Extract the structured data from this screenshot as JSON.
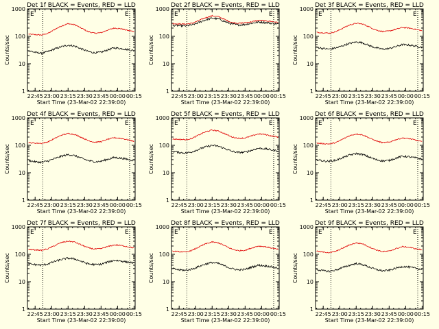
{
  "figure": {
    "background": "#ffffe6"
  },
  "colors": {
    "events": "#000000",
    "lld": "#e00000",
    "axes": "#000000"
  },
  "chart_data": [
    {
      "type": "line",
      "title": "Det 1f BLACK = Events, RED = LLD",
      "xlabel": "Start Time (23-Mar-02 22:39:00)",
      "ylabel": "Counts/sec",
      "yscale": "log",
      "ylim": [
        1,
        1000
      ],
      "y_ticks": [
        "1",
        "10",
        "100",
        "1000"
      ],
      "xlim_minutes": [
        -1,
        97
      ],
      "x_ticks": [
        "22:45",
        "23:00",
        "23:15",
        "23:30",
        "23:45",
        "00:00",
        "00:15"
      ],
      "marker_E": "E",
      "vlines": [
        "22:52",
        "00:11"
      ],
      "x": [
        "22:39",
        "22:45",
        "22:51",
        "22:57",
        "23:03",
        "23:09",
        "23:15",
        "23:21",
        "23:27",
        "23:33",
        "23:39",
        "23:45",
        "23:51",
        "23:57",
        "00:03",
        "00:09",
        "00:15"
      ],
      "series": [
        {
          "key": "lld",
          "values": [
            120,
            115,
            112,
            130,
            180,
            240,
            290,
            265,
            200,
            150,
            130,
            135,
            170,
            200,
            190,
            165,
            150
          ]
        },
        {
          "key": "events",
          "values": [
            30,
            26,
            24,
            28,
            35,
            42,
            48,
            44,
            35,
            28,
            25,
            26,
            32,
            38,
            36,
            33,
            30
          ]
        }
      ]
    },
    {
      "type": "line",
      "title": "Det 2f BLACK = Events, RED = LLD",
      "xlabel": "Start Time (23-Mar-02 22:39:00)",
      "ylabel": "Counts/sec",
      "yscale": "log",
      "ylim": [
        1,
        1000
      ],
      "y_ticks": [
        "1",
        "10",
        "100",
        "1000"
      ],
      "xlim_minutes": [
        -1,
        97
      ],
      "x_ticks": [
        "22:45",
        "23:00",
        "23:15",
        "23:30",
        "23:45",
        "00:00",
        "00:15"
      ],
      "marker_E": "E",
      "vlines": [
        "22:52",
        "00:11"
      ],
      "x": [
        "22:39",
        "22:45",
        "22:51",
        "22:57",
        "23:03",
        "23:09",
        "23:15",
        "23:21",
        "23:27",
        "23:33",
        "23:39",
        "23:45",
        "23:51",
        "23:57",
        "00:03",
        "00:09",
        "00:15"
      ],
      "series": [
        {
          "key": "lld",
          "values": [
            290,
            285,
            280,
            300,
            380,
            480,
            560,
            520,
            400,
            320,
            300,
            310,
            340,
            380,
            370,
            350,
            320
          ]
        },
        {
          "key": "events",
          "values": [
            250,
            245,
            240,
            260,
            320,
            400,
            460,
            430,
            340,
            280,
            260,
            270,
            300,
            330,
            320,
            300,
            280
          ]
        }
      ]
    },
    {
      "type": "line",
      "title": "Det 3f BLACK = Events, RED = LLD",
      "xlabel": "Start Time (23-Mar-02 22:39:00)",
      "ylabel": "Counts/sec",
      "yscale": "log",
      "ylim": [
        1,
        1000
      ],
      "y_ticks": [
        "1",
        "10",
        "100",
        "1000"
      ],
      "xlim_minutes": [
        -1,
        97
      ],
      "x_ticks": [
        "22:45",
        "23:00",
        "23:15",
        "23:30",
        "23:45",
        "00:00",
        "00:15"
      ],
      "marker_E": "E",
      "vlines": [
        "22:52",
        "00:11"
      ],
      "x": [
        "22:39",
        "22:45",
        "22:51",
        "22:57",
        "23:03",
        "23:09",
        "23:15",
        "23:21",
        "23:27",
        "23:33",
        "23:39",
        "23:45",
        "23:51",
        "23:57",
        "00:03",
        "00:09",
        "00:15"
      ],
      "series": [
        {
          "key": "lld",
          "values": [
            140,
            135,
            130,
            150,
            200,
            260,
            300,
            280,
            220,
            170,
            150,
            155,
            180,
            210,
            200,
            180,
            160
          ]
        },
        {
          "key": "events",
          "values": [
            40,
            36,
            34,
            38,
            46,
            55,
            62,
            58,
            46,
            38,
            34,
            36,
            42,
            50,
            48,
            44,
            40
          ]
        }
      ]
    },
    {
      "type": "line",
      "title": "Det 4f BLACK = Events, RED = LLD",
      "xlabel": "Start Time (23-Mar-02 22:39:00)",
      "ylabel": "Counts/sec",
      "yscale": "log",
      "ylim": [
        1,
        1000
      ],
      "y_ticks": [
        "1",
        "10",
        "100",
        "1000"
      ],
      "xlim_minutes": [
        -1,
        97
      ],
      "x_ticks": [
        "22:45",
        "23:00",
        "23:15",
        "23:30",
        "23:45",
        "00:00",
        "00:15"
      ],
      "marker_E": "E",
      "vlines": [
        "22:52",
        "00:11"
      ],
      "x": [
        "22:39",
        "22:45",
        "22:51",
        "22:57",
        "23:03",
        "23:09",
        "23:15",
        "23:21",
        "23:27",
        "23:33",
        "23:39",
        "23:45",
        "23:51",
        "23:57",
        "00:03",
        "00:09",
        "00:15"
      ],
      "series": [
        {
          "key": "lld",
          "values": [
            125,
            120,
            118,
            135,
            180,
            235,
            270,
            250,
            195,
            150,
            130,
            135,
            165,
            190,
            180,
            160,
            140
          ]
        },
        {
          "key": "events",
          "values": [
            28,
            25,
            24,
            27,
            33,
            40,
            46,
            42,
            34,
            28,
            25,
            26,
            31,
            36,
            34,
            31,
            28
          ]
        }
      ]
    },
    {
      "type": "line",
      "title": "Det 5f BLACK = Events, RED = LLD",
      "xlabel": "Start Time (23-Mar-02 22:39:00)",
      "ylabel": "Counts/sec",
      "yscale": "log",
      "ylim": [
        1,
        1000
      ],
      "y_ticks": [
        "1",
        "10",
        "100",
        "1000"
      ],
      "xlim_minutes": [
        -1,
        97
      ],
      "x_ticks": [
        "22:45",
        "23:00",
        "23:15",
        "23:30",
        "23:45",
        "00:00",
        "00:15"
      ],
      "marker_E": "E",
      "vlines": [
        "22:52",
        "00:11"
      ],
      "x": [
        "22:39",
        "22:45",
        "22:51",
        "22:57",
        "23:03",
        "23:09",
        "23:15",
        "23:21",
        "23:27",
        "23:33",
        "23:39",
        "23:45",
        "23:51",
        "23:57",
        "00:03",
        "00:09",
        "00:15"
      ],
      "series": [
        {
          "key": "lld",
          "values": [
            170,
            165,
            160,
            180,
            240,
            310,
            360,
            330,
            260,
            200,
            180,
            185,
            220,
            260,
            250,
            220,
            200
          ]
        },
        {
          "key": "events",
          "values": [
            60,
            55,
            52,
            58,
            72,
            88,
            100,
            92,
            75,
            60,
            55,
            56,
            66,
            78,
            75,
            68,
            62
          ]
        }
      ]
    },
    {
      "type": "line",
      "title": "Det 6f BLACK = Events, RED = LLD",
      "xlabel": "Start Time (23-Mar-02 22:39:00)",
      "ylabel": "Counts/sec",
      "yscale": "log",
      "ylim": [
        1,
        1000
      ],
      "y_ticks": [
        "1",
        "10",
        "100",
        "1000"
      ],
      "xlim_minutes": [
        -1,
        97
      ],
      "x_ticks": [
        "22:45",
        "23:00",
        "23:15",
        "23:30",
        "23:45",
        "00:00",
        "00:15"
      ],
      "marker_E": "E",
      "vlines": [
        "22:52",
        "00:11"
      ],
      "x": [
        "22:39",
        "22:45",
        "22:51",
        "22:57",
        "23:03",
        "23:09",
        "23:15",
        "23:21",
        "23:27",
        "23:33",
        "23:39",
        "23:45",
        "23:51",
        "23:57",
        "00:03",
        "00:09",
        "00:15"
      ],
      "series": [
        {
          "key": "lld",
          "values": [
            120,
            115,
            112,
            128,
            170,
            225,
            260,
            240,
            185,
            145,
            125,
            130,
            160,
            185,
            175,
            155,
            135
          ]
        },
        {
          "key": "events",
          "values": [
            30,
            27,
            26,
            29,
            36,
            44,
            50,
            46,
            37,
            30,
            27,
            28,
            34,
            40,
            38,
            35,
            31
          ]
        }
      ]
    },
    {
      "type": "line",
      "title": "Det 7f BLACK = Events, RED = LLD",
      "xlabel": "Start Time (23-Mar-02 22:39:00)",
      "ylabel": "Counts/sec",
      "yscale": "log",
      "ylim": [
        1,
        1000
      ],
      "y_ticks": [
        "1",
        "10",
        "100",
        "1000"
      ],
      "xlim_minutes": [
        -1,
        97
      ],
      "x_ticks": [
        "22:45",
        "23:00",
        "23:15",
        "23:30",
        "23:45",
        "00:00",
        "00:15"
      ],
      "marker_E": "E",
      "vlines": [
        "22:52",
        "00:11"
      ],
      "x": [
        "22:39",
        "22:45",
        "22:51",
        "22:57",
        "23:03",
        "23:09",
        "23:15",
        "23:21",
        "23:27",
        "23:33",
        "23:39",
        "23:45",
        "23:51",
        "23:57",
        "00:03",
        "00:09",
        "00:15"
      ],
      "series": [
        {
          "key": "lld",
          "values": [
            150,
            145,
            140,
            160,
            210,
            270,
            300,
            280,
            220,
            175,
            155,
            160,
            190,
            220,
            210,
            190,
            170
          ]
        },
        {
          "key": "events",
          "values": [
            45,
            42,
            40,
            45,
            55,
            65,
            72,
            68,
            55,
            45,
            42,
            43,
            52,
            60,
            57,
            52,
            48
          ]
        }
      ]
    },
    {
      "type": "line",
      "title": "Det 8f BLACK = Events, RED = LLD",
      "xlabel": "Start Time (23-Mar-02 22:39:00)",
      "ylabel": "Counts/sec",
      "yscale": "log",
      "ylim": [
        1,
        1000
      ],
      "y_ticks": [
        "1",
        "10",
        "100",
        "1000"
      ],
      "xlim_minutes": [
        -1,
        97
      ],
      "x_ticks": [
        "22:45",
        "23:00",
        "23:15",
        "23:30",
        "23:45",
        "00:00",
        "00:15"
      ],
      "marker_E": "E",
      "vlines": [
        "22:52",
        "00:11"
      ],
      "x": [
        "22:39",
        "22:45",
        "22:51",
        "22:57",
        "23:03",
        "23:09",
        "23:15",
        "23:21",
        "23:27",
        "23:33",
        "23:39",
        "23:45",
        "23:51",
        "23:57",
        "00:03",
        "00:09",
        "00:15"
      ],
      "series": [
        {
          "key": "lld",
          "values": [
            130,
            125,
            120,
            140,
            185,
            240,
            280,
            260,
            200,
            155,
            135,
            140,
            170,
            200,
            190,
            170,
            150
          ]
        },
        {
          "key": "events",
          "values": [
            30,
            27,
            26,
            29,
            36,
            44,
            50,
            46,
            37,
            30,
            27,
            28,
            34,
            40,
            38,
            35,
            31
          ]
        }
      ]
    },
    {
      "type": "line",
      "title": "Det 9f BLACK = Events, RED = LLD",
      "xlabel": "Start Time (23-Mar-02 22:39:00)",
      "ylabel": "Counts/sec",
      "yscale": "log",
      "ylim": [
        1,
        1000
      ],
      "y_ticks": [
        "1",
        "10",
        "100",
        "1000"
      ],
      "xlim_minutes": [
        -1,
        97
      ],
      "x_ticks": [
        "22:45",
        "23:00",
        "23:15",
        "23:30",
        "23:45",
        "00:00",
        "00:15"
      ],
      "marker_E": "E",
      "vlines": [
        "22:52",
        "00:11"
      ],
      "x": [
        "22:39",
        "22:45",
        "22:51",
        "22:57",
        "23:03",
        "23:09",
        "23:15",
        "23:21",
        "23:27",
        "23:33",
        "23:39",
        "23:45",
        "23:51",
        "23:57",
        "00:03",
        "00:09",
        "00:15"
      ],
      "series": [
        {
          "key": "lld",
          "values": [
            130,
            120,
            115,
            130,
            170,
            220,
            260,
            240,
            185,
            145,
            125,
            130,
            160,
            190,
            180,
            160,
            145
          ]
        },
        {
          "key": "events",
          "values": [
            28,
            25,
            24,
            27,
            33,
            40,
            46,
            42,
            34,
            28,
            25,
            26,
            31,
            36,
            34,
            31,
            28
          ]
        }
      ]
    }
  ]
}
